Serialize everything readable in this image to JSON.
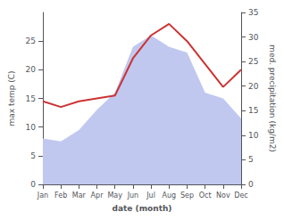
{
  "chart_data": {
    "type": "line",
    "xlabel": "date (month)",
    "ylabel": "max temp (C)",
    "y2label": "med. precipitation (kg/m2)",
    "categories": [
      "Jan",
      "Feb",
      "Mar",
      "Apr",
      "May",
      "Jun",
      "Jul",
      "Aug",
      "Sep",
      "Oct",
      "Nov",
      "Dec"
    ],
    "series": [
      {
        "type": "area",
        "color": "#c0c8f0",
        "values": [
          8.0,
          7.5,
          9.5,
          13.0,
          16.0,
          24.0,
          26.0,
          24.0,
          23.0,
          16.0,
          15.0,
          11.5
        ]
      },
      {
        "type": "line",
        "color": "#cc3333",
        "values": [
          14.5,
          13.5,
          14.5,
          15.0,
          15.5,
          22.0,
          26.0,
          28.0,
          25.0,
          21.0,
          17.0,
          20.0
        ]
      }
    ],
    "ylim": [
      0,
      30
    ],
    "yticks": [
      0,
      5,
      10,
      15,
      20,
      25
    ],
    "y2lim": [
      0,
      35
    ],
    "y2ticks": [
      0,
      5,
      10,
      15,
      20,
      25,
      30,
      35
    ],
    "grid": false
  }
}
